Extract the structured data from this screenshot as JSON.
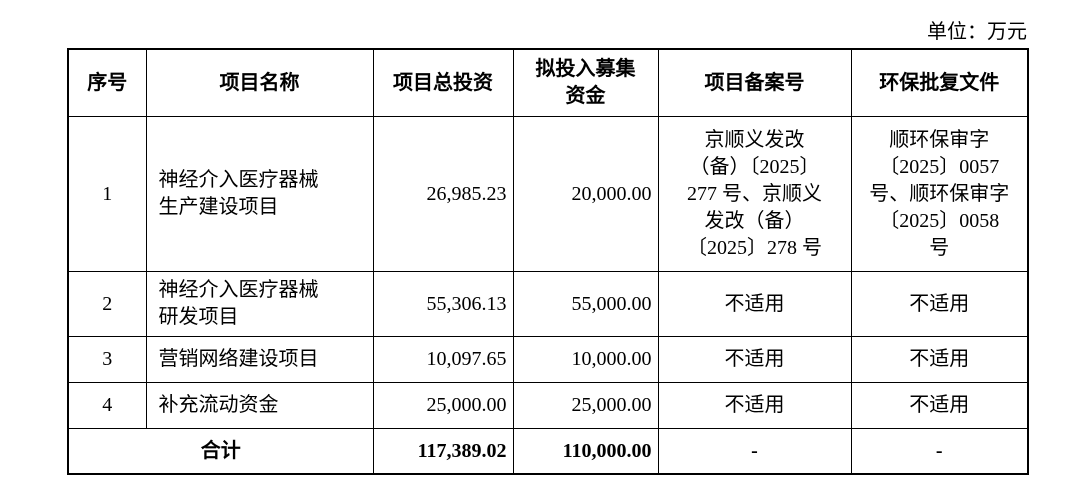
{
  "unit": "单位：万元",
  "table": {
    "headers": [
      "序号",
      "项目名称",
      "项目总投资",
      [
        "拟投入募集",
        "资金"
      ],
      "项目备案号",
      "环保批复文件"
    ],
    "rows": [
      [
        "1",
        [
          "神经介入医疗器械",
          "生产建设项目"
        ],
        "26,985.23",
        "20,000.00",
        [
          "京顺义发改",
          "（备）〔2025〕",
          "277 号、京顺义",
          "发改（备）",
          "〔2025〕278 号"
        ],
        [
          "顺环保审字",
          "〔2025〕0057",
          "号、顺环保审字",
          "〔2025〕0058",
          "号"
        ]
      ],
      [
        "2",
        [
          "神经介入医疗器械",
          "研发项目"
        ],
        "55,306.13",
        "55,000.00",
        "不适用",
        "不适用"
      ],
      [
        "3",
        "营销网络建设项目",
        "10,097.65",
        "10,000.00",
        "不适用",
        "不适用"
      ],
      [
        "4",
        "补充流动资金",
        "25,000.00",
        "25,000.00",
        "不适用",
        "不适用"
      ]
    ],
    "total": [
      "合计",
      "117,389.02",
      "110,000.00",
      "-",
      "-"
    ]
  }
}
